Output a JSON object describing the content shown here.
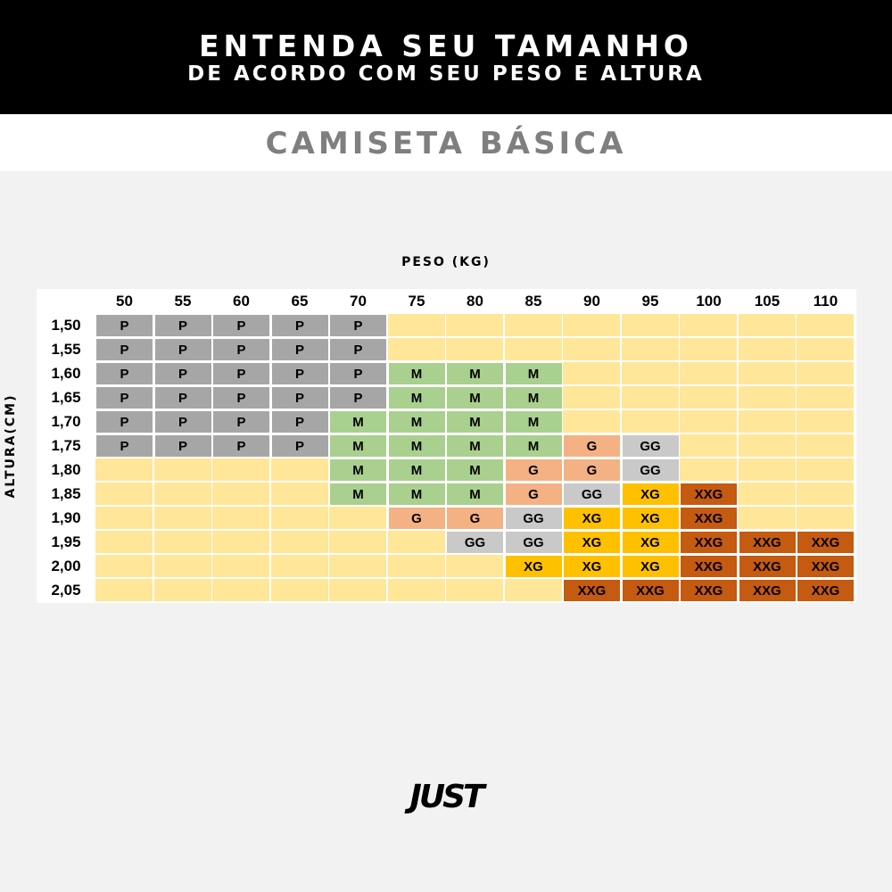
{
  "header": {
    "title": "ENTENDA SEU TAMANHO",
    "subtitle": "DE ACORDO COM SEU PESO E ALTURA"
  },
  "product": "CAMISETA BÁSICA",
  "brand": "JUST",
  "colors": {
    "P": "#a6a6a6",
    "M": "#a9d08e",
    "G": "#f4b183",
    "GG": "#c9c9c9",
    "XG": "#ffc000",
    "XXG": "#c55a11",
    "empty": "#ffe699"
  },
  "chart_data": {
    "type": "table",
    "xlabel": "PESO (KG)",
    "ylabel": "ALTURA(CM)",
    "columns": [
      "50",
      "55",
      "60",
      "65",
      "70",
      "75",
      "80",
      "85",
      "90",
      "95",
      "100",
      "105",
      "110"
    ],
    "rows": [
      "1,50",
      "1,55",
      "1,60",
      "1,65",
      "1,70",
      "1,75",
      "1,80",
      "1,85",
      "1,90",
      "1,95",
      "2,00",
      "2,05"
    ],
    "cells": [
      [
        "P",
        "P",
        "P",
        "P",
        "P",
        "",
        "",
        "",
        "",
        "",
        "",
        "",
        ""
      ],
      [
        "P",
        "P",
        "P",
        "P",
        "P",
        "",
        "",
        "",
        "",
        "",
        "",
        "",
        ""
      ],
      [
        "P",
        "P",
        "P",
        "P",
        "P",
        "M",
        "M",
        "M",
        "",
        "",
        "",
        "",
        ""
      ],
      [
        "P",
        "P",
        "P",
        "P",
        "P",
        "M",
        "M",
        "M",
        "",
        "",
        "",
        "",
        ""
      ],
      [
        "P",
        "P",
        "P",
        "P",
        "M",
        "M",
        "M",
        "M",
        "",
        "",
        "",
        "",
        ""
      ],
      [
        "P",
        "P",
        "P",
        "P",
        "M",
        "M",
        "M",
        "M",
        "G",
        "GG",
        "",
        "",
        ""
      ],
      [
        "",
        "",
        "",
        "",
        "M",
        "M",
        "M",
        "G",
        "G",
        "GG",
        "",
        "",
        ""
      ],
      [
        "",
        "",
        "",
        "",
        "M",
        "M",
        "M",
        "G",
        "GG",
        "XG",
        "XXG",
        "",
        ""
      ],
      [
        "",
        "",
        "",
        "",
        "",
        "G",
        "G",
        "GG",
        "XG",
        "XG",
        "XXG",
        "",
        ""
      ],
      [
        "",
        "",
        "",
        "",
        "",
        "",
        "GG",
        "GG",
        "XG",
        "XG",
        "XXG",
        "XXG",
        "XXG"
      ],
      [
        "",
        "",
        "",
        "",
        "",
        "",
        "",
        "XG",
        "XG",
        "XG",
        "XXG",
        "XXG",
        "XXG"
      ],
      [
        "",
        "",
        "",
        "",
        "",
        "",
        "",
        "",
        "XXG",
        "XXG",
        "XXG",
        "XXG",
        "XXG"
      ]
    ]
  }
}
